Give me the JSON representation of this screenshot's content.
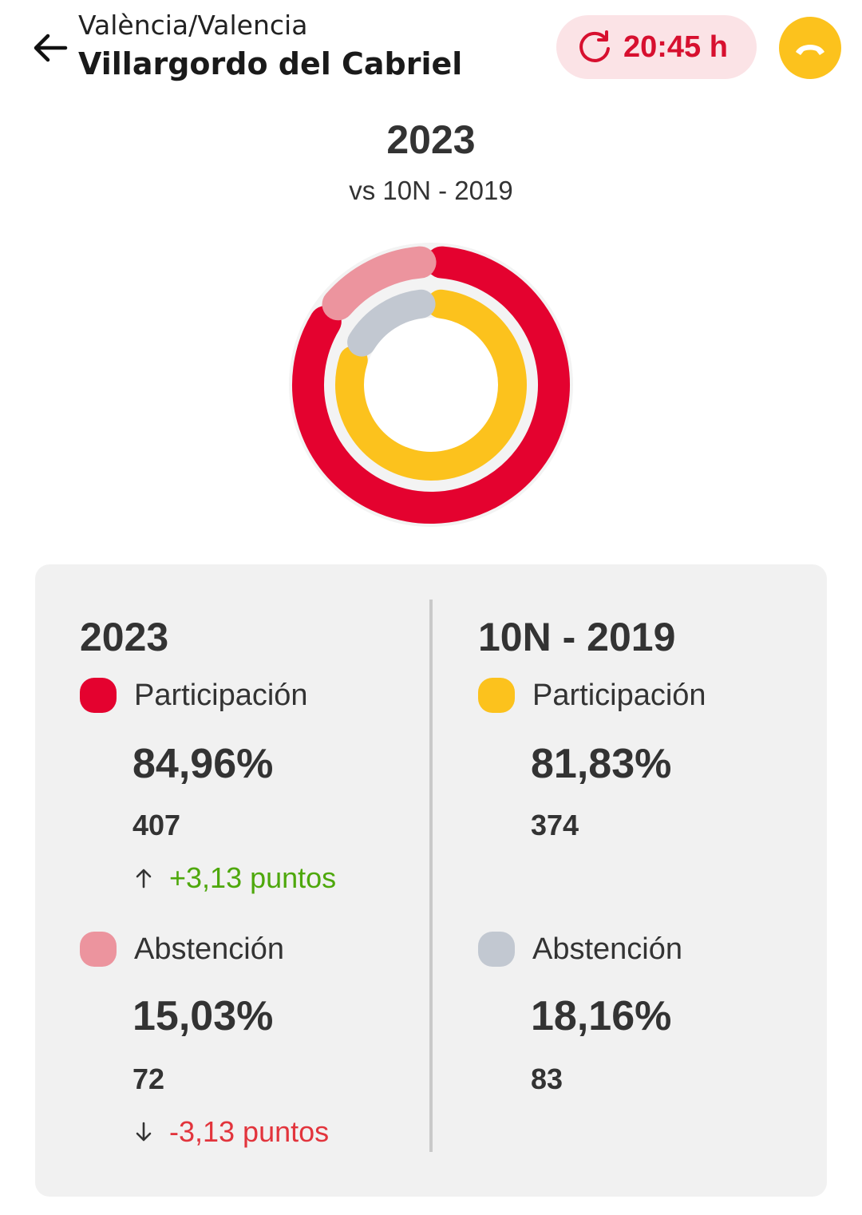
{
  "header": {
    "region": "València/Valencia",
    "town": "Villargordo del Cabriel",
    "update_time": "20:45 h"
  },
  "title": {
    "year": "2023",
    "comparison": "vs 10N - 2019"
  },
  "colors": {
    "participation_2023": "#e4022f",
    "abstention_2023": "#ec949e",
    "participation_2019": "#fcc21d",
    "abstention_2019": "#c2c8d1",
    "positive": "#4ea80c",
    "negative": "#e2343c"
  },
  "donut": {
    "outer_participation_pct": 84.96,
    "outer_abstention_pct": 15.03,
    "inner_participation_pct": 81.83,
    "inner_abstention_pct": 18.16
  },
  "current": {
    "year_label": "2023",
    "participation": {
      "label": "Participación",
      "pct": "84,96%",
      "count": "407",
      "delta": "+3,13 puntos"
    },
    "abstention": {
      "label": "Abstención",
      "pct": "15,03%",
      "count": "72",
      "delta": "-3,13 puntos"
    }
  },
  "previous": {
    "year_label": "10N - 2019",
    "participation": {
      "label": "Participación",
      "pct": "81,83%",
      "count": "374"
    },
    "abstention": {
      "label": "Abstención",
      "pct": "18,16%",
      "count": "83"
    }
  }
}
